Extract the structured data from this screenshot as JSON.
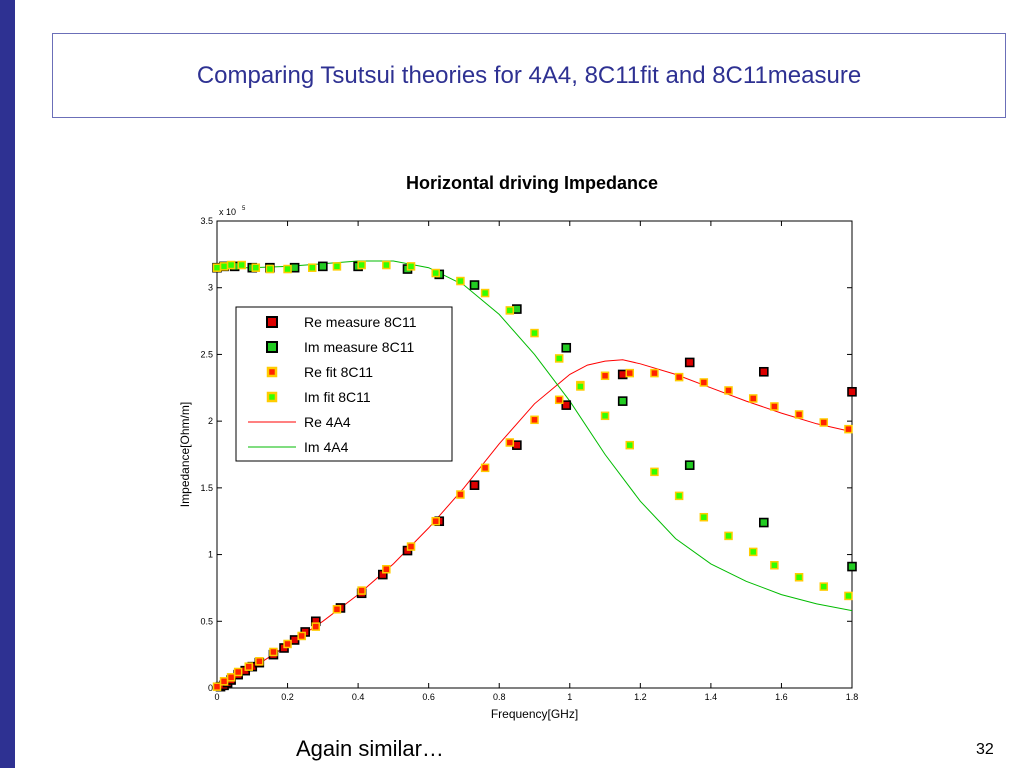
{
  "slide": {
    "title": "Comparing Tsutsui theories for 4A4, 8C11fit and 8C11measure",
    "footer": "Again similar…",
    "page_number": "32",
    "accent_color": "#2E3192"
  },
  "chart_data": {
    "type": "scatter",
    "title": "Horizontal driving Impedance",
    "xlabel": "Frequency[GHz]",
    "ylabel": "Impedance[Ohm/m]",
    "y_multiplier_label": "x 10",
    "y_multiplier_exponent": "5",
    "xlim": [
      0,
      1.8
    ],
    "ylim": [
      0,
      3.5
    ],
    "x_ticks": [
      0,
      0.2,
      0.4,
      0.6,
      0.8,
      1,
      1.2,
      1.4,
      1.6,
      1.8
    ],
    "x_tick_labels": [
      "0",
      "0.2",
      "0.4",
      "0.6",
      "0.8",
      "1",
      "1.2",
      "1.4",
      "1.6",
      "1.8"
    ],
    "y_ticks": [
      0,
      0.5,
      1,
      1.5,
      2,
      2.5,
      3,
      3.5
    ],
    "y_tick_labels": [
      "0",
      "0.5",
      "1",
      "1.5",
      "2",
      "2.5",
      "3",
      "3.5"
    ],
    "legend_position": "upper-left",
    "series": [
      {
        "name": "Re measure 8C11",
        "marker": "square-outlined",
        "color": "#dd0000",
        "edge": "#000000",
        "x": [
          0.01,
          0.02,
          0.03,
          0.04,
          0.06,
          0.08,
          0.1,
          0.12,
          0.16,
          0.19,
          0.22,
          0.25,
          0.28,
          0.35,
          0.41,
          0.47,
          0.54,
          0.63,
          0.73,
          0.85,
          0.99,
          1.15,
          1.34,
          1.55,
          1.8
        ],
        "y": [
          0.01,
          0.02,
          0.04,
          0.06,
          0.1,
          0.13,
          0.16,
          0.19,
          0.25,
          0.3,
          0.36,
          0.42,
          0.5,
          0.6,
          0.71,
          0.85,
          1.03,
          1.25,
          1.52,
          1.82,
          2.12,
          2.35,
          2.44,
          2.37,
          2.22
        ]
      },
      {
        "name": "Im measure 8C11",
        "marker": "square-outlined",
        "color": "#22cc22",
        "edge": "#000000",
        "x": [
          0.0,
          0.02,
          0.05,
          0.1,
          0.15,
          0.22,
          0.3,
          0.4,
          0.54,
          0.63,
          0.73,
          0.85,
          0.99,
          1.15,
          1.34,
          1.55,
          1.8
        ],
        "y": [
          3.15,
          3.16,
          3.16,
          3.15,
          3.15,
          3.15,
          3.16,
          3.16,
          3.14,
          3.1,
          3.02,
          2.84,
          2.55,
          2.15,
          1.67,
          1.24,
          0.91
        ]
      },
      {
        "name": "Re fit 8C11",
        "marker": "square",
        "color": "#ff2200",
        "edge": "#ffcc00",
        "x": [
          0.0,
          0.02,
          0.04,
          0.06,
          0.09,
          0.12,
          0.16,
          0.2,
          0.24,
          0.28,
          0.34,
          0.41,
          0.48,
          0.55,
          0.62,
          0.69,
          0.76,
          0.83,
          0.9,
          0.97,
          1.03,
          1.1,
          1.17,
          1.24,
          1.31,
          1.38,
          1.45,
          1.52,
          1.58,
          1.65,
          1.72,
          1.79
        ],
        "y": [
          0.01,
          0.05,
          0.08,
          0.12,
          0.16,
          0.2,
          0.27,
          0.33,
          0.39,
          0.46,
          0.59,
          0.73,
          0.89,
          1.06,
          1.25,
          1.45,
          1.65,
          1.84,
          2.01,
          2.16,
          2.27,
          2.34,
          2.36,
          2.36,
          2.33,
          2.29,
          2.23,
          2.17,
          2.11,
          2.05,
          1.99,
          1.94
        ]
      },
      {
        "name": "Im fit 8C11",
        "marker": "square",
        "color": "#33ff00",
        "edge": "#ffcc00",
        "x": [
          0.0,
          0.02,
          0.04,
          0.07,
          0.11,
          0.15,
          0.2,
          0.27,
          0.34,
          0.41,
          0.48,
          0.55,
          0.62,
          0.69,
          0.76,
          0.83,
          0.9,
          0.97,
          1.03,
          1.1,
          1.17,
          1.24,
          1.31,
          1.38,
          1.45,
          1.52,
          1.58,
          1.65,
          1.72,
          1.79
        ],
        "y": [
          3.15,
          3.16,
          3.17,
          3.17,
          3.15,
          3.14,
          3.14,
          3.15,
          3.16,
          3.17,
          3.17,
          3.16,
          3.11,
          3.05,
          2.96,
          2.83,
          2.66,
          2.47,
          2.26,
          2.04,
          1.82,
          1.62,
          1.44,
          1.28,
          1.14,
          1.02,
          0.92,
          0.83,
          0.76,
          0.69
        ]
      },
      {
        "name": "Re 4A4",
        "marker": "line",
        "color": "#ff0000",
        "x": [
          0,
          0.1,
          0.2,
          0.3,
          0.4,
          0.5,
          0.6,
          0.7,
          0.8,
          0.9,
          1.0,
          1.05,
          1.1,
          1.15,
          1.2,
          1.3,
          1.4,
          1.5,
          1.6,
          1.7,
          1.8
        ],
        "y": [
          0,
          0.15,
          0.32,
          0.5,
          0.7,
          0.93,
          1.2,
          1.5,
          1.83,
          2.13,
          2.35,
          2.42,
          2.45,
          2.46,
          2.43,
          2.35,
          2.25,
          2.15,
          2.06,
          1.98,
          1.92
        ]
      },
      {
        "name": "Im 4A4",
        "marker": "line",
        "color": "#00bb00",
        "x": [
          0,
          0.1,
          0.2,
          0.3,
          0.4,
          0.5,
          0.6,
          0.7,
          0.8,
          0.9,
          1.0,
          1.1,
          1.2,
          1.3,
          1.4,
          1.5,
          1.6,
          1.7,
          1.8
        ],
        "y": [
          3.15,
          3.15,
          3.16,
          3.18,
          3.2,
          3.2,
          3.15,
          3.02,
          2.8,
          2.5,
          2.15,
          1.75,
          1.4,
          1.12,
          0.93,
          0.8,
          0.7,
          0.63,
          0.58
        ]
      }
    ]
  }
}
